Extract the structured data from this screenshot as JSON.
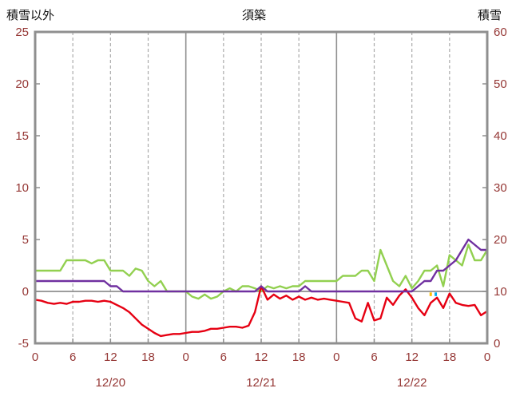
{
  "header": {
    "left_axis_title": "積雪以外",
    "title": "須築",
    "right_axis_title": "積雪"
  },
  "chart_data": {
    "type": "line",
    "title": "須築",
    "left_axis": {
      "title": "積雪以外",
      "min": -5,
      "max": 25,
      "ticks": [
        25,
        20,
        15,
        10,
        5,
        0,
        -5
      ]
    },
    "right_axis": {
      "title": "積雪",
      "min": 0,
      "max": 60,
      "ticks": [
        60,
        50,
        40,
        30,
        20,
        10,
        0
      ]
    },
    "x_axis": {
      "min": 0,
      "max": 72,
      "ticks": [
        0,
        6,
        12,
        18,
        24,
        30,
        36,
        42,
        48,
        54,
        60,
        66,
        72
      ],
      "tick_labels": [
        "0",
        "6",
        "12",
        "18",
        "0",
        "6",
        "12",
        "18",
        "0",
        "6",
        "12",
        "18",
        "0"
      ],
      "minor_gridlines": [
        6,
        12,
        18,
        30,
        36,
        42,
        54,
        60,
        66
      ],
      "day_boundaries": [
        24,
        48
      ],
      "date_labels": [
        {
          "label": "12/20",
          "hour": 12
        },
        {
          "label": "12/21",
          "hour": 36
        },
        {
          "label": "12/22",
          "hour": 60
        }
      ]
    },
    "series": [
      {
        "name": "green-line",
        "axis": "left",
        "color": "#92d050",
        "values": [
          2,
          2,
          2,
          2,
          2,
          3,
          3,
          3,
          3,
          2.7,
          3,
          3,
          2,
          2,
          2,
          1.5,
          2.2,
          2,
          1,
          0.5,
          1,
          0,
          0,
          0,
          0,
          -0.5,
          -0.7,
          -0.3,
          -0.7,
          -0.5,
          0,
          0.3,
          0,
          0.5,
          0.5,
          0.3,
          0,
          0.5,
          0.3,
          0.5,
          0.3,
          0.5,
          0.5,
          1,
          1,
          1,
          1,
          1,
          1,
          1.5,
          1.5,
          1.5,
          2,
          2,
          1,
          4,
          2.5,
          1,
          0.5,
          1.5,
          0.3,
          1,
          2,
          2,
          2.5,
          0.5,
          3.5,
          3,
          2.5,
          4.5,
          3,
          3,
          4
        ]
      },
      {
        "name": "red-line",
        "axis": "left",
        "color": "#e60012",
        "values": [
          -0.8,
          -0.9,
          -1.1,
          -1.2,
          -1.1,
          -1.2,
          -1.0,
          -1.0,
          -0.9,
          -0.9,
          -1.0,
          -0.9,
          -1.0,
          -1.3,
          -1.6,
          -2.0,
          -2.6,
          -3.2,
          -3.6,
          -4.0,
          -4.3,
          -4.2,
          -4.1,
          -4.1,
          -4.0,
          -3.9,
          -3.9,
          -3.8,
          -3.6,
          -3.6,
          -3.5,
          -3.4,
          -3.4,
          -3.5,
          -3.3,
          -2.0,
          0.5,
          -0.8,
          -0.3,
          -0.7,
          -0.4,
          -0.8,
          -0.5,
          -0.8,
          -0.6,
          -0.8,
          -0.7,
          -0.8,
          -0.9,
          -1.0,
          -1.1,
          -2.6,
          -2.9,
          -1.1,
          -2.8,
          -2.6,
          -0.6,
          -1.3,
          -0.4,
          0.2,
          -0.6,
          -1.6,
          -2.3,
          -1.1,
          -0.6,
          -1.6,
          -0.2,
          -1.1,
          -1.3,
          -1.4,
          -1.3,
          -2.3,
          -1.9
        ]
      },
      {
        "name": "purple-line",
        "axis": "right",
        "color": "#7030a0",
        "values": [
          12,
          12,
          12,
          12,
          12,
          12,
          12,
          12,
          12,
          12,
          12,
          12,
          11,
          11,
          10,
          10,
          10,
          10,
          10,
          10,
          10,
          10,
          10,
          10,
          10,
          10,
          10,
          10,
          10,
          10,
          10,
          10,
          10,
          10,
          10,
          10,
          11,
          10,
          10,
          10,
          10,
          10,
          10,
          11,
          10,
          10,
          10,
          10,
          10,
          10,
          10,
          10,
          10,
          10,
          10,
          10,
          10,
          10,
          10,
          10,
          10,
          11,
          12,
          12,
          14,
          14,
          15,
          16,
          18,
          20,
          19,
          18,
          18
        ]
      }
    ],
    "markers": [
      {
        "name": "orange-tick",
        "color": "#ffc000",
        "hour": 63.0,
        "from": -0.1,
        "to": -0.45
      },
      {
        "name": "teal-tick",
        "color": "#00b0f0",
        "hour": 63.8,
        "from": -0.1,
        "to": -0.45
      }
    ],
    "styles": {
      "background": "#ffffff",
      "frame_color": "#8f8f8f",
      "grid_color": "#ababab",
      "zero_line_color": "#8f8f8f",
      "tick_label_color": "#953735",
      "title_color": "#111111"
    }
  }
}
